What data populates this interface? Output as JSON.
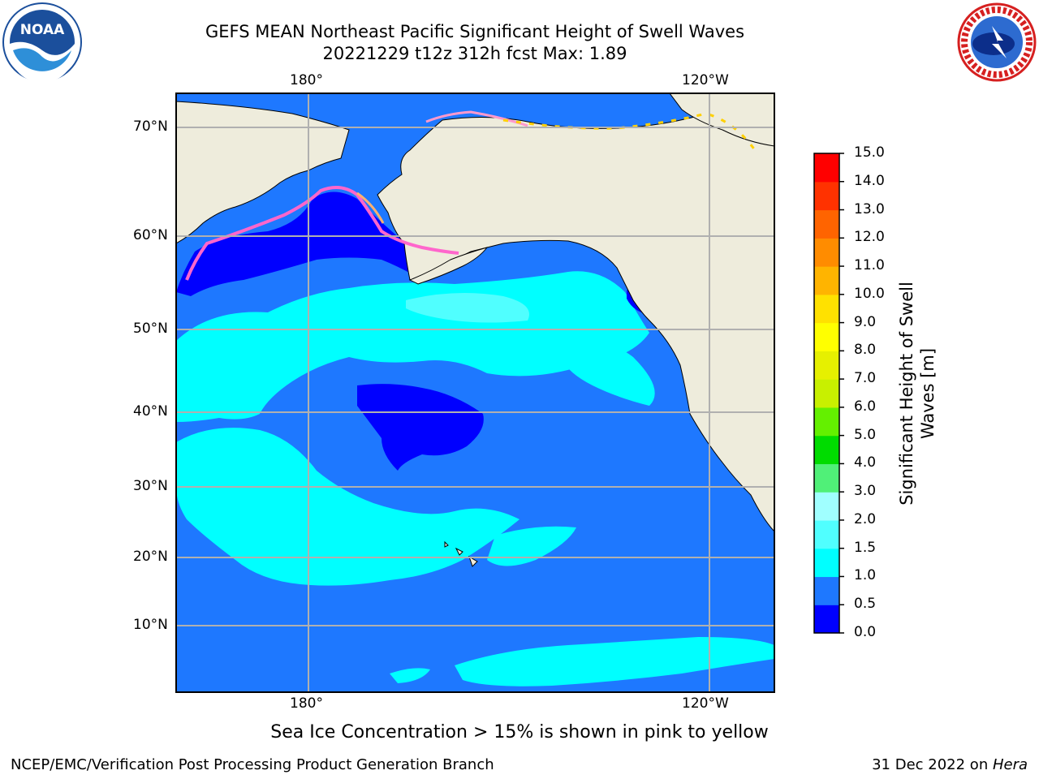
{
  "title": {
    "line1": "GEFS MEAN Northeast Pacific Significant Height of Swell Waves",
    "line2": "20221229 t12z 312h fcst   Max: 1.89"
  },
  "logos": {
    "noaa": {
      "text": "NOAA",
      "icon": "noaa-logo-icon"
    },
    "nws": {
      "icon": "nws-logo-icon"
    }
  },
  "map": {
    "lon_top": [
      "180°",
      "120°W"
    ],
    "lon_bottom": [
      "180°",
      "120°W"
    ],
    "lat_labels": [
      "70°N",
      "60°N",
      "50°N",
      "40°N",
      "30°N",
      "20°N",
      "10°N"
    ],
    "colors": {
      "land": "#eeecdc",
      "coast": "#000000",
      "grid": "#b0b0b0"
    }
  },
  "colorbar": {
    "label_line1": "Significant Height of Swell",
    "label_line2": "Waves [m]",
    "ticks": [
      "15.0",
      "14.0",
      "13.0",
      "12.0",
      "11.0",
      "10.0",
      "9.0",
      "8.0",
      "7.0",
      "6.0",
      "5.0",
      "4.0",
      "3.0",
      "2.0",
      "1.5",
      "1.0",
      "0.5",
      "0.0"
    ],
    "colors_bottom_to_top": [
      "#0000ff",
      "#1e78ff",
      "#00ffff",
      "#50ffff",
      "#a0ffff",
      "#50f078",
      "#00dc00",
      "#64f000",
      "#c8f000",
      "#e6f000",
      "#ffff00",
      "#ffe100",
      "#ffb400",
      "#ff8c00",
      "#ff6400",
      "#ff3200",
      "#ff0000"
    ]
  },
  "caption": "Sea Ice Concentration > 15% is shown in pink to yellow",
  "footer": {
    "left": "NCEP/EMC/Verification Post Processing Product Generation Branch",
    "date": "31 Dec 2022 on ",
    "machine": "Hera"
  }
}
